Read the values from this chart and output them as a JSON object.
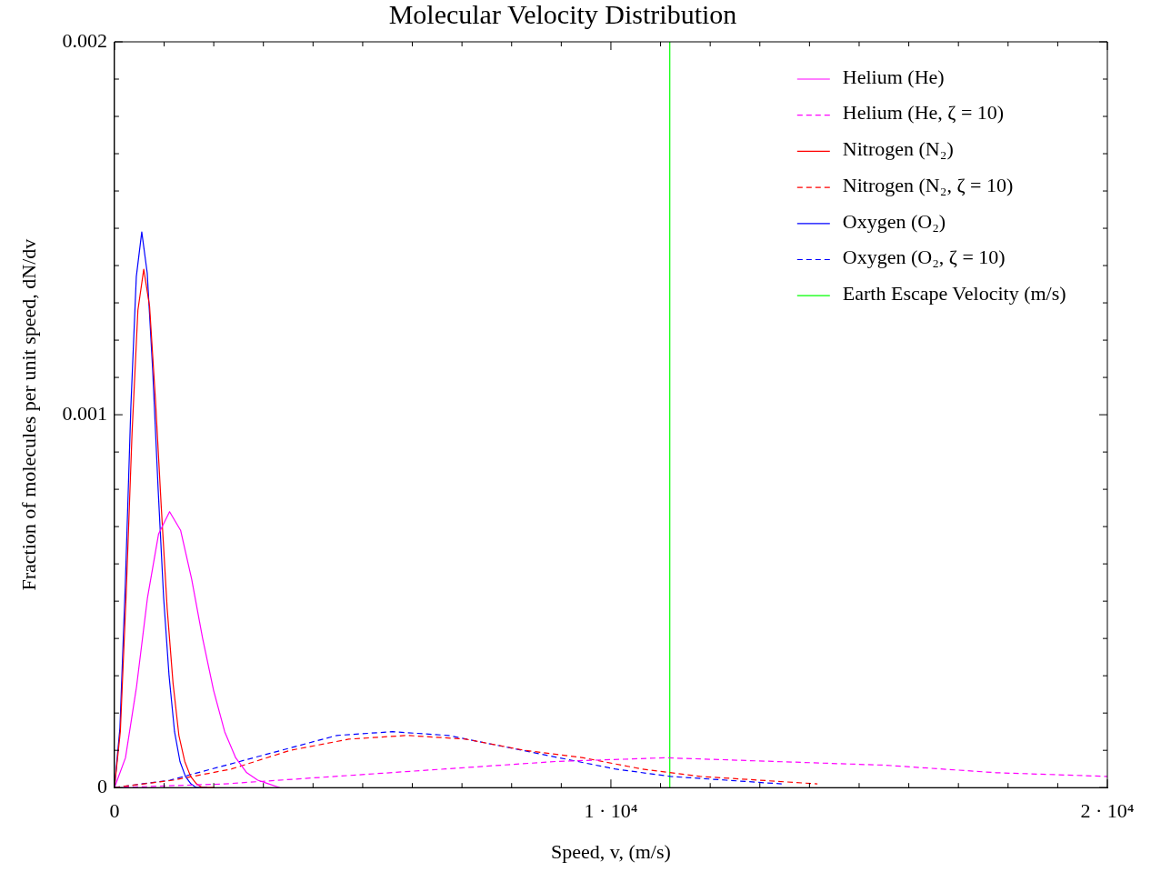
{
  "chart_data": {
    "type": "line",
    "title": "Molecular Velocity Distribution",
    "xlabel": "Speed, v, (m/s)",
    "ylabel": "Fraction of molecules per unit speed, dN/dv",
    "xlim": [
      0,
      20000
    ],
    "ylim": [
      0,
      0.002
    ],
    "xticks": [
      0,
      {
        "value": 1000,
        "label": null
      },
      {
        "value": 2000,
        "label": null
      },
      {
        "value": 3000,
        "label": null
      },
      {
        "value": 4000,
        "label": null
      },
      {
        "value": 5000,
        "label": null
      },
      {
        "value": 6000,
        "label": null
      },
      {
        "value": 7000,
        "label": null
      },
      {
        "value": 8000,
        "label": null
      },
      {
        "value": 9000,
        "label": null
      },
      {
        "value": 10000,
        "label": "1 · 10⁴"
      },
      {
        "value": 11000,
        "label": null
      },
      {
        "value": 12000,
        "label": null
      },
      {
        "value": 13000,
        "label": null
      },
      {
        "value": 14000,
        "label": null
      },
      {
        "value": 15000,
        "label": null
      },
      {
        "value": 16000,
        "label": null
      },
      {
        "value": 17000,
        "label": null
      },
      {
        "value": 18000,
        "label": null
      },
      {
        "value": 19000,
        "label": null
      },
      {
        "value": 20000,
        "label": "2 · 10⁴"
      }
    ],
    "yticks": [
      0,
      {
        "value": 0.0001,
        "label": null
      },
      {
        "value": 0.0002,
        "label": null
      },
      {
        "value": 0.0003,
        "label": null
      },
      {
        "value": 0.0004,
        "label": null
      },
      {
        "value": 0.0005,
        "label": null
      },
      {
        "value": 0.0006,
        "label": null
      },
      {
        "value": 0.0007,
        "label": null
      },
      {
        "value": 0.0008,
        "label": null
      },
      {
        "value": 0.0009,
        "label": null
      },
      0.001,
      {
        "value": 0.0011,
        "label": null
      },
      {
        "value": 0.0012,
        "label": null
      },
      {
        "value": 0.0013,
        "label": null
      },
      {
        "value": 0.0014,
        "label": null
      },
      {
        "value": 0.0015,
        "label": null
      },
      {
        "value": 0.0016,
        "label": null
      },
      {
        "value": 0.0017,
        "label": null
      },
      {
        "value": 0.0018,
        "label": null
      },
      {
        "value": 0.0019,
        "label": null
      },
      0.002
    ],
    "grid": false,
    "legend": "top right",
    "marker": "none",
    "series": [
      {
        "name": "Helium (He)",
        "color": "#ff00ff",
        "line_style": "solid",
        "x": [
          0,
          222,
          444,
          666,
          888,
          1110,
          1332,
          1554,
          1776,
          1998,
          2220,
          2442,
          2664,
          2886,
          3108,
          3330
        ],
        "values": [
          0,
          8e-05,
          0.00027,
          0.00051,
          0.00068,
          0.00074,
          0.00069,
          0.00056,
          0.0004,
          0.00026,
          0.00015,
          8e-05,
          4e-05,
          2e-05,
          1e-05,
          0
        ]
      },
      {
        "name": "Helium (He, ζ = 10)",
        "color": "#ff00ff",
        "line_style": "dashed",
        "x": [
          0,
          2220,
          4440,
          6660,
          8880,
          11100,
          13320,
          15540,
          17760,
          20000
        ],
        "values": [
          0,
          1e-05,
          3e-05,
          5e-05,
          7e-05,
          8e-05,
          7e-05,
          6e-05,
          4e-05,
          3e-05
        ]
      },
      {
        "name": "Nitrogen (N₂)",
        "color": "#ff0000",
        "line_style": "solid",
        "x": [
          0,
          118,
          236,
          354,
          472,
          590,
          708,
          826,
          944,
          1062,
          1180,
          1298,
          1416,
          1534,
          1652,
          1770,
          2006
        ],
        "values": [
          0,
          0.00015,
          0.00052,
          0.00095,
          0.00128,
          0.00139,
          0.00129,
          0.00104,
          0.00075,
          0.00048,
          0.00028,
          0.00014,
          7e-05,
          3e-05,
          1e-05,
          0,
          0
        ]
      },
      {
        "name": "Nitrogen (N₂, ζ = 10)",
        "color": "#ff0000",
        "line_style": "dashed",
        "x": [
          0,
          1180,
          2360,
          3540,
          4720,
          5900,
          7080,
          8260,
          9440,
          10620,
          11800,
          12980,
          14160
        ],
        "values": [
          0,
          2e-05,
          5e-05,
          0.0001,
          0.00013,
          0.00014,
          0.00013,
          0.0001,
          8e-05,
          5e-05,
          3e-05,
          2e-05,
          1e-05
        ]
      },
      {
        "name": "Oxygen (O₂)",
        "color": "#0000ff",
        "line_style": "solid",
        "x": [
          0,
          110,
          220,
          330,
          440,
          550,
          660,
          770,
          880,
          990,
          1100,
          1210,
          1320,
          1430,
          1540,
          1650,
          1870
        ],
        "values": [
          0,
          0.00016,
          0.00055,
          0.00102,
          0.00137,
          0.00149,
          0.00138,
          0.00112,
          0.0008,
          0.00051,
          0.0003,
          0.00015,
          7e-05,
          3e-05,
          1e-05,
          0,
          0
        ]
      },
      {
        "name": "Oxygen (O₂, ζ = 10)",
        "color": "#0000ff",
        "line_style": "dashed",
        "x": [
          0,
          1120,
          2240,
          3360,
          4480,
          5600,
          6720,
          7840,
          8960,
          10080,
          11200,
          12320,
          13440
        ],
        "values": [
          0,
          2e-05,
          6e-05,
          0.0001,
          0.00014,
          0.00015,
          0.00014,
          0.00011,
          8e-05,
          5e-05,
          3e-05,
          2e-05,
          1e-05
        ]
      },
      {
        "name": "Earth Escape Velocity (m/s)",
        "color": "#00ff00",
        "line_style": "solid",
        "x": [
          11186,
          11186
        ],
        "values": [
          0,
          0.002
        ]
      }
    ]
  }
}
